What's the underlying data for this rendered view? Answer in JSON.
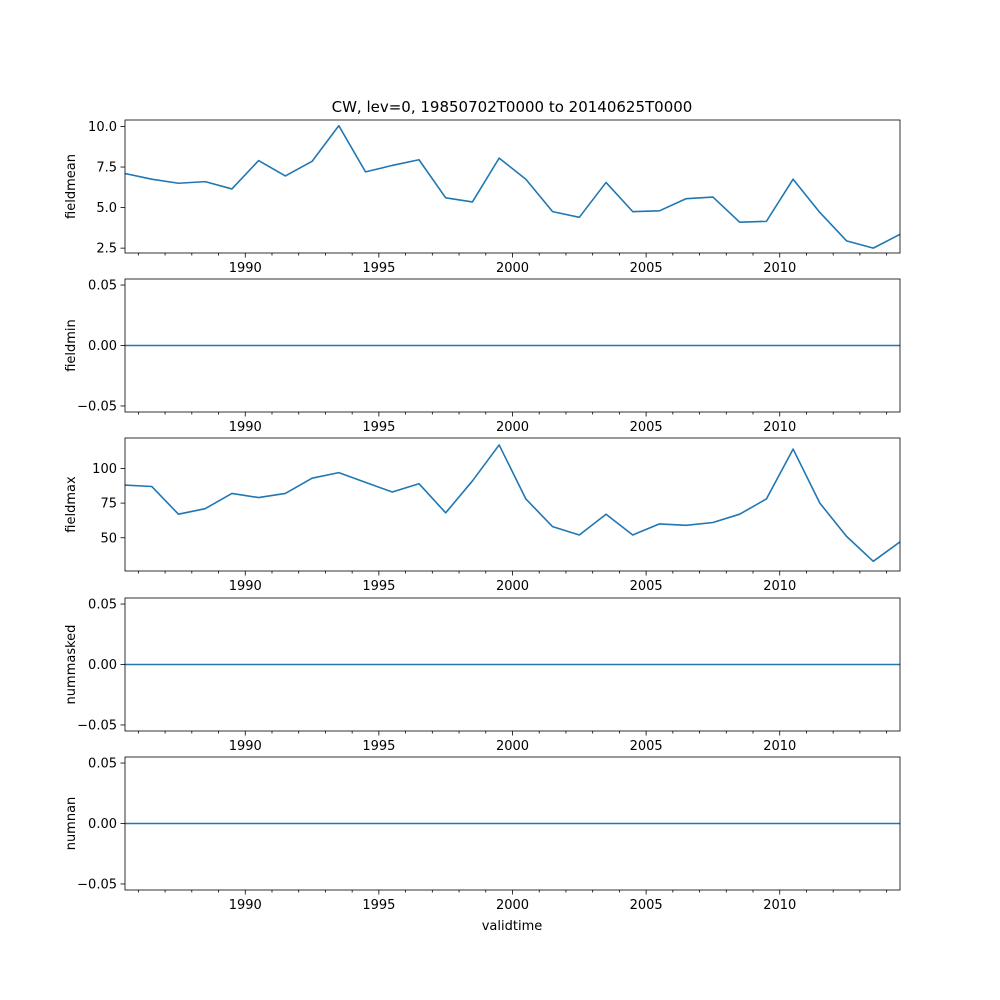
{
  "title": "CW, lev=0, 19850702T0000 to 20140625T0000",
  "xlabel": "validtime",
  "colors": {
    "line": "#1f77b4",
    "axes": "#000000",
    "background": "#ffffff"
  },
  "chart_data": [
    {
      "type": "line",
      "name": "fieldmean",
      "ylabel": "fieldmean",
      "xlim": [
        1985.5,
        2014.5
      ],
      "ylim": [
        2.2,
        10.4
      ],
      "yticks": [
        2.5,
        5.0,
        7.5,
        10.0
      ],
      "ytick_labels": [
        "2.5",
        "5.0",
        "7.5",
        "10.0"
      ],
      "xticks": [
        1990,
        1995,
        2000,
        2005,
        2010
      ],
      "xtick_labels": [
        "1990",
        "1995",
        "2000",
        "2005",
        "2010"
      ],
      "x": [
        1985.5,
        1986.5,
        1987.5,
        1988.5,
        1989.5,
        1990.5,
        1991.5,
        1992.5,
        1993.5,
        1994.5,
        1995.5,
        1996.5,
        1997.5,
        1998.5,
        1999.5,
        2000.5,
        2001.5,
        2002.5,
        2003.5,
        2004.5,
        2005.5,
        2006.5,
        2007.5,
        2008.5,
        2009.5,
        2010.5,
        2011.5,
        2012.5,
        2013.5,
        2014.5
      ],
      "values": [
        7.1,
        6.75,
        6.5,
        6.6,
        6.15,
        7.9,
        6.95,
        7.85,
        10.05,
        7.2,
        7.6,
        7.95,
        5.6,
        5.35,
        8.05,
        6.75,
        4.75,
        4.4,
        6.55,
        4.75,
        4.8,
        5.55,
        5.65,
        4.1,
        4.15,
        6.75,
        4.7,
        2.95,
        2.5,
        3.35
      ]
    },
    {
      "type": "line",
      "name": "fieldmin",
      "ylabel": "fieldmin",
      "xlim": [
        1985.5,
        2014.5
      ],
      "ylim": [
        -0.055,
        0.055
      ],
      "yticks": [
        -0.05,
        0.0,
        0.05
      ],
      "ytick_labels": [
        "−0.05",
        "0.00",
        "0.05"
      ],
      "xticks": [
        1990,
        1995,
        2000,
        2005,
        2010
      ],
      "xtick_labels": [
        "1990",
        "1995",
        "2000",
        "2005",
        "2010"
      ],
      "x": [
        1985.5,
        2014.5
      ],
      "values": [
        0,
        0
      ]
    },
    {
      "type": "line",
      "name": "fieldmax",
      "ylabel": "fieldmax",
      "xlim": [
        1985.5,
        2014.5
      ],
      "ylim": [
        26,
        122
      ],
      "yticks": [
        50,
        75,
        100
      ],
      "ytick_labels": [
        "50",
        "75",
        "100"
      ],
      "xticks": [
        1990,
        1995,
        2000,
        2005,
        2010
      ],
      "xtick_labels": [
        "1990",
        "1995",
        "2000",
        "2005",
        "2010"
      ],
      "x": [
        1985.5,
        1986.5,
        1987.5,
        1988.5,
        1989.5,
        1990.5,
        1991.5,
        1992.5,
        1993.5,
        1994.5,
        1995.5,
        1996.5,
        1997.5,
        1998.5,
        1999.5,
        2000.5,
        2001.5,
        2002.5,
        2003.5,
        2004.5,
        2005.5,
        2006.5,
        2007.5,
        2008.5,
        2009.5,
        2010.5,
        2011.5,
        2012.5,
        2013.5,
        2014.5
      ],
      "values": [
        88,
        87,
        67,
        71,
        82,
        79,
        82,
        93,
        97,
        90,
        83,
        89,
        68,
        91,
        117,
        78,
        58,
        52,
        67,
        52,
        60,
        59,
        61,
        67,
        78,
        114,
        75,
        51,
        33,
        47
      ]
    },
    {
      "type": "line",
      "name": "nummasked",
      "ylabel": "nummasked",
      "xlim": [
        1985.5,
        2014.5
      ],
      "ylim": [
        -0.055,
        0.055
      ],
      "yticks": [
        -0.05,
        0.0,
        0.05
      ],
      "ytick_labels": [
        "−0.05",
        "0.00",
        "0.05"
      ],
      "xticks": [
        1990,
        1995,
        2000,
        2005,
        2010
      ],
      "xtick_labels": [
        "1990",
        "1995",
        "2000",
        "2005",
        "2010"
      ],
      "x": [
        1985.5,
        2014.5
      ],
      "values": [
        0,
        0
      ]
    },
    {
      "type": "line",
      "name": "numnan",
      "ylabel": "numnan",
      "xlim": [
        1985.5,
        2014.5
      ],
      "ylim": [
        -0.055,
        0.055
      ],
      "yticks": [
        -0.05,
        0.0,
        0.05
      ],
      "ytick_labels": [
        "−0.05",
        "0.00",
        "0.05"
      ],
      "xticks": [
        1990,
        1995,
        2000,
        2005,
        2010
      ],
      "xtick_labels": [
        "1990",
        "1995",
        "2000",
        "2005",
        "2010"
      ],
      "x": [
        1985.5,
        2014.5
      ],
      "values": [
        0,
        0
      ]
    }
  ]
}
